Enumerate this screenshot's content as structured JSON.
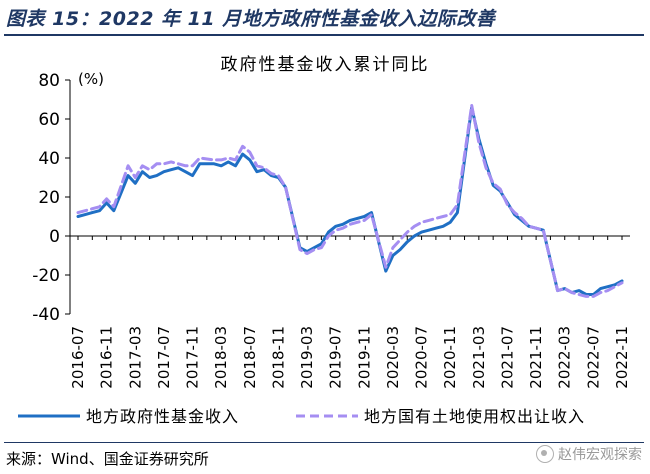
{
  "figure_title": "图表 15：2022 年 11 月地方政府性基金收入边际改善",
  "source": "来源：Wind、国金证券研究所",
  "watermark": "赵伟宏观探索",
  "colors": {
    "solid": "#1f6fc4",
    "dashed": "#a58ef2",
    "frame": "#1f3864"
  },
  "chart_data": {
    "type": "line",
    "title": "政府性基金收入累计同比",
    "ylabel": "(%)",
    "ylim": [
      -40,
      80
    ],
    "yticks": [
      -40,
      -20,
      0,
      20,
      40,
      60,
      80
    ],
    "xlim": [
      "2016-07",
      "2022-11"
    ],
    "x_tick_labels": [
      "2016-07",
      "2016-11",
      "2017-03",
      "2017-07",
      "2017-11",
      "2018-03",
      "2018-07",
      "2018-11",
      "2019-03",
      "2019-07",
      "2019-11",
      "2020-03",
      "2020-07",
      "2020-11",
      "2021-03",
      "2021-07",
      "2021-11",
      "2022-03",
      "2022-07",
      "2022-11"
    ],
    "grid": false,
    "legend_position": "bottom",
    "series": [
      {
        "name": "地方政府性基金收入",
        "style": "solid",
        "points": [
          [
            "2016-07",
            10
          ],
          [
            "2016-08",
            11
          ],
          [
            "2016-09",
            12
          ],
          [
            "2016-10",
            13
          ],
          [
            "2016-11",
            17
          ],
          [
            "2016-12",
            13
          ],
          [
            "2017-02",
            31
          ],
          [
            "2017-03",
            27
          ],
          [
            "2017-04",
            33
          ],
          [
            "2017-05",
            30
          ],
          [
            "2017-06",
            31
          ],
          [
            "2017-07",
            33
          ],
          [
            "2017-08",
            34
          ],
          [
            "2017-09",
            35
          ],
          [
            "2017-10",
            33
          ],
          [
            "2017-11",
            31
          ],
          [
            "2017-12",
            37
          ],
          [
            "2018-02",
            37
          ],
          [
            "2018-03",
            36
          ],
          [
            "2018-04",
            38
          ],
          [
            "2018-05",
            36
          ],
          [
            "2018-06",
            42
          ],
          [
            "2018-07",
            39
          ],
          [
            "2018-08",
            33
          ],
          [
            "2018-09",
            34
          ],
          [
            "2018-10",
            31
          ],
          [
            "2018-11",
            30
          ],
          [
            "2018-12",
            25
          ],
          [
            "2019-02",
            -6
          ],
          [
            "2019-03",
            -8
          ],
          [
            "2019-04",
            -6
          ],
          [
            "2019-05",
            -4
          ],
          [
            "2019-06",
            2
          ],
          [
            "2019-07",
            5
          ],
          [
            "2019-08",
            6
          ],
          [
            "2019-09",
            8
          ],
          [
            "2019-10",
            9
          ],
          [
            "2019-11",
            10
          ],
          [
            "2019-12",
            12
          ],
          [
            "2020-02",
            -18
          ],
          [
            "2020-03",
            -10
          ],
          [
            "2020-04",
            -7
          ],
          [
            "2020-05",
            -3
          ],
          [
            "2020-06",
            0
          ],
          [
            "2020-07",
            2
          ],
          [
            "2020-08",
            3
          ],
          [
            "2020-09",
            4
          ],
          [
            "2020-10",
            5
          ],
          [
            "2020-11",
            7
          ],
          [
            "2020-12",
            12
          ],
          [
            "2021-02",
            66
          ],
          [
            "2021-03",
            50
          ],
          [
            "2021-04",
            37
          ],
          [
            "2021-05",
            26
          ],
          [
            "2021-06",
            23
          ],
          [
            "2021-07",
            17
          ],
          [
            "2021-08",
            11
          ],
          [
            "2021-09",
            8
          ],
          [
            "2021-10",
            5
          ],
          [
            "2021-11",
            4
          ],
          [
            "2021-12",
            3
          ],
          [
            "2022-02",
            -28
          ],
          [
            "2022-03",
            -27
          ],
          [
            "2022-04",
            -29
          ],
          [
            "2022-05",
            -28
          ],
          [
            "2022-06",
            -30
          ],
          [
            "2022-07",
            -30
          ],
          [
            "2022-08",
            -27
          ],
          [
            "2022-09",
            -26
          ],
          [
            "2022-10",
            -25
          ],
          [
            "2022-11",
            -23
          ]
        ]
      },
      {
        "name": "地方国有土地使用权出让收入",
        "style": "dashed",
        "points": [
          [
            "2016-07",
            12
          ],
          [
            "2016-08",
            13
          ],
          [
            "2016-09",
            14
          ],
          [
            "2016-10",
            15
          ],
          [
            "2016-11",
            19
          ],
          [
            "2016-12",
            15
          ],
          [
            "2017-02",
            36
          ],
          [
            "2017-03",
            30
          ],
          [
            "2017-04",
            36
          ],
          [
            "2017-05",
            34
          ],
          [
            "2017-06",
            37
          ],
          [
            "2017-07",
            37
          ],
          [
            "2017-08",
            38
          ],
          [
            "2017-09",
            37
          ],
          [
            "2017-10",
            36
          ],
          [
            "2017-11",
            36
          ],
          [
            "2017-12",
            40
          ],
          [
            "2018-02",
            39
          ],
          [
            "2018-03",
            39
          ],
          [
            "2018-04",
            40
          ],
          [
            "2018-05",
            39
          ],
          [
            "2018-06",
            46
          ],
          [
            "2018-07",
            43
          ],
          [
            "2018-08",
            36
          ],
          [
            "2018-09",
            35
          ],
          [
            "2018-10",
            32
          ],
          [
            "2018-11",
            31
          ],
          [
            "2018-12",
            25
          ],
          [
            "2019-02",
            -7
          ],
          [
            "2019-03",
            -9
          ],
          [
            "2019-04",
            -7
          ],
          [
            "2019-05",
            -6
          ],
          [
            "2019-06",
            0
          ],
          [
            "2019-07",
            3
          ],
          [
            "2019-08",
            4
          ],
          [
            "2019-09",
            6
          ],
          [
            "2019-10",
            7
          ],
          [
            "2019-11",
            8
          ],
          [
            "2019-12",
            11
          ],
          [
            "2020-02",
            -16
          ],
          [
            "2020-03",
            -6
          ],
          [
            "2020-04",
            -2
          ],
          [
            "2020-05",
            2
          ],
          [
            "2020-06",
            5
          ],
          [
            "2020-07",
            7
          ],
          [
            "2020-08",
            8
          ],
          [
            "2020-09",
            9
          ],
          [
            "2020-10",
            10
          ],
          [
            "2020-11",
            11
          ],
          [
            "2020-12",
            16
          ],
          [
            "2021-02",
            67
          ],
          [
            "2021-03",
            48
          ],
          [
            "2021-04",
            35
          ],
          [
            "2021-05",
            27
          ],
          [
            "2021-06",
            24
          ],
          [
            "2021-07",
            16
          ],
          [
            "2021-08",
            12
          ],
          [
            "2021-09",
            9
          ],
          [
            "2021-10",
            5
          ],
          [
            "2021-11",
            4
          ],
          [
            "2021-12",
            3
          ],
          [
            "2022-02",
            -28
          ],
          [
            "2022-03",
            -27
          ],
          [
            "2022-04",
            -29
          ],
          [
            "2022-05",
            -30
          ],
          [
            "2022-06",
            -31
          ],
          [
            "2022-07",
            -31
          ],
          [
            "2022-08",
            -29
          ],
          [
            "2022-09",
            -28
          ],
          [
            "2022-10",
            -26
          ],
          [
            "2022-11",
            -24
          ]
        ]
      }
    ]
  }
}
